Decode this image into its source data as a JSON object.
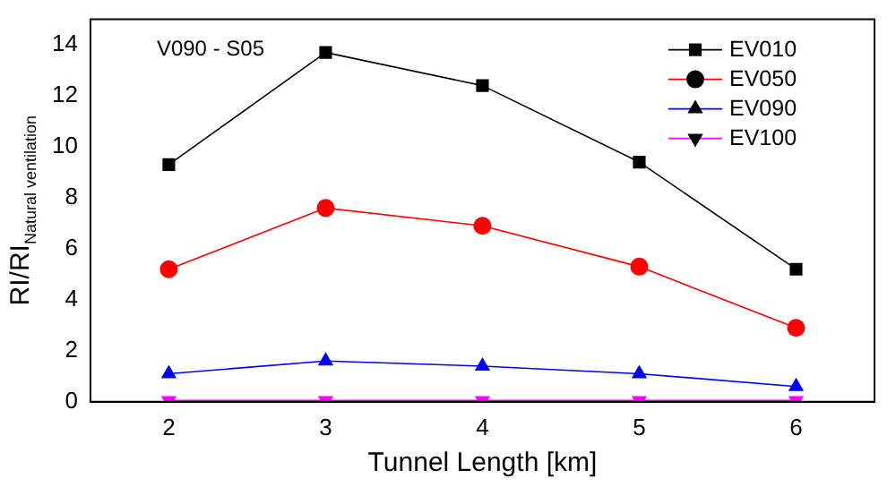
{
  "chart_data": {
    "type": "line",
    "xlabel": "Tunnel Length [km]",
    "ylabel": "RI/RI$_{Natural ventilation}$",
    "annotations": [
      "V090 - S05"
    ],
    "x": [
      2,
      3,
      4,
      5,
      6
    ],
    "xlim": [
      1.5,
      6.5
    ],
    "xticks": [
      2,
      3,
      4,
      5,
      6
    ],
    "ylim": [
      0,
      15
    ],
    "yticks": [
      0,
      2,
      4,
      6,
      8,
      10,
      12,
      14
    ],
    "series": [
      {
        "name": "EV010",
        "color": "#000000",
        "marker": "square",
        "values": [
          9.3,
          13.7,
          12.4,
          9.4,
          5.2
        ]
      },
      {
        "name": "EV050",
        "color": "#ff0000",
        "marker": "circle",
        "values": [
          5.2,
          7.6,
          6.9,
          5.3,
          2.9
        ]
      },
      {
        "name": "EV090",
        "color": "#0000ff",
        "marker": "triangle",
        "values": [
          1.1,
          1.6,
          1.4,
          1.1,
          0.6
        ]
      },
      {
        "name": "EV100",
        "color": "#ff00ff",
        "marker": "triangle_down",
        "values": [
          0.05,
          0.05,
          0.05,
          0.05,
          0.05
        ]
      }
    ],
    "legend": "top right",
    "grid": false
  }
}
